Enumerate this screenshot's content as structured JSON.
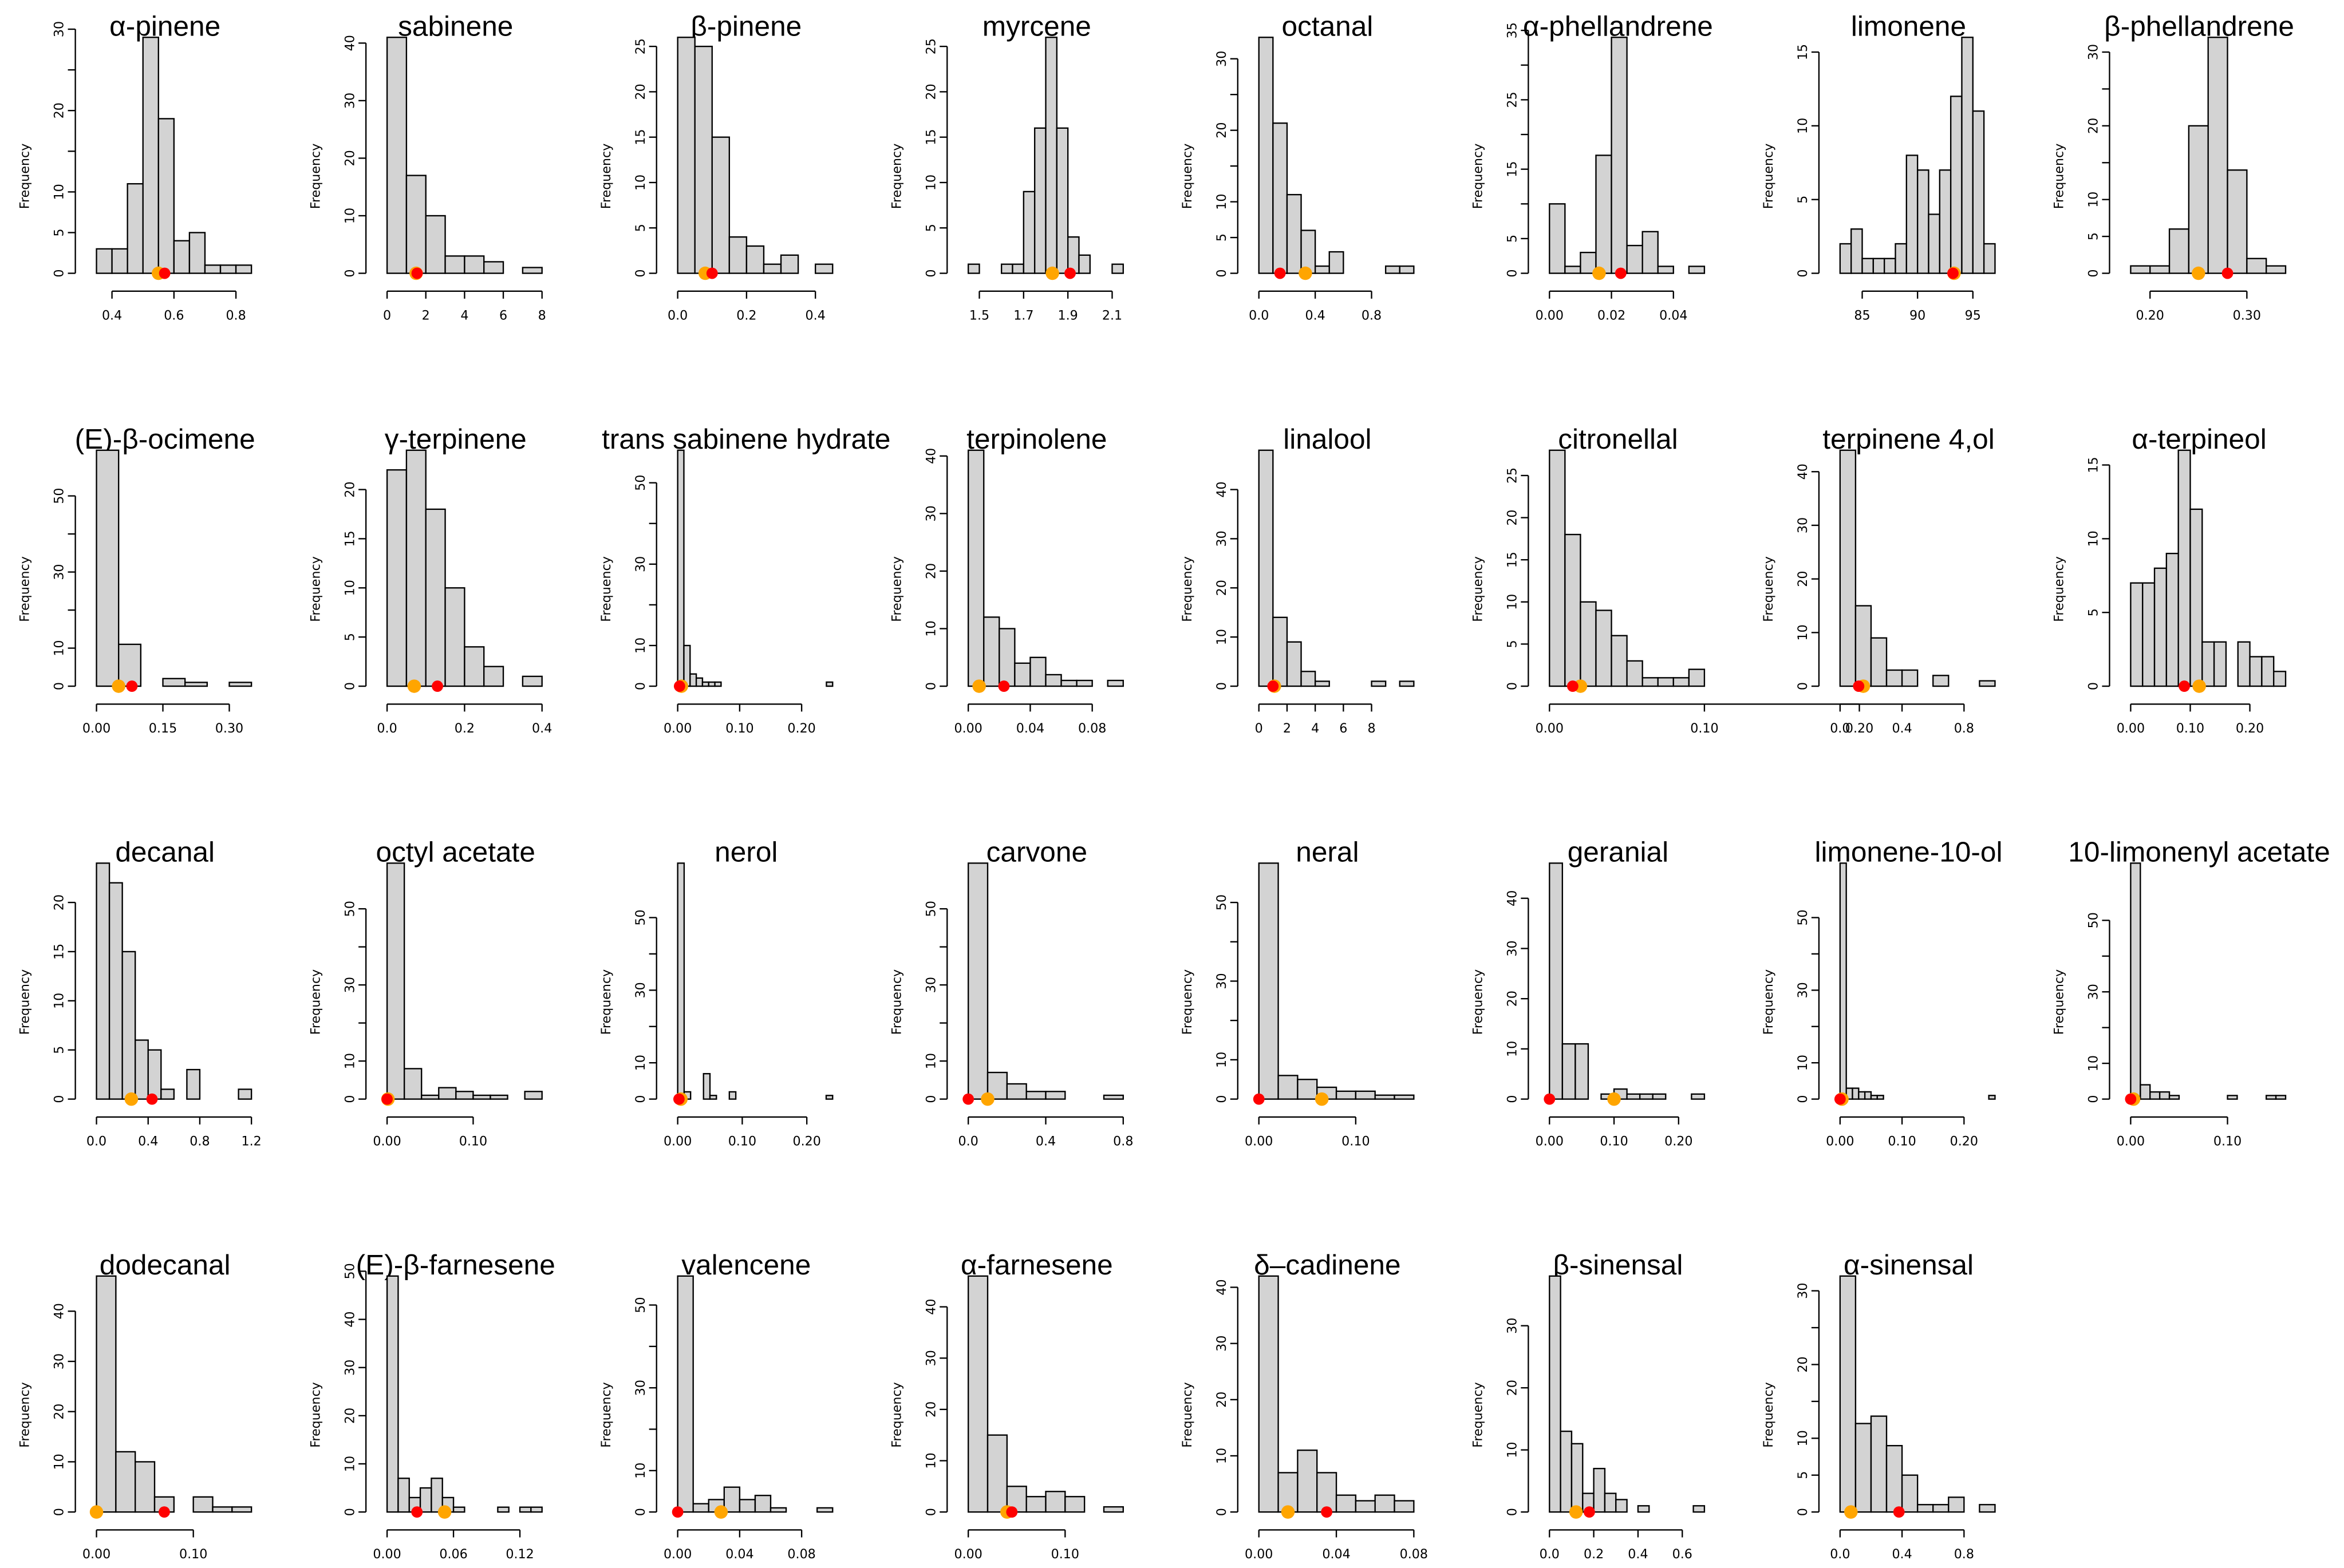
{
  "chart_data": [
    {
      "type": "bar",
      "title": "α-pinene",
      "ylabel": "Frequency",
      "bin_start": 0.35,
      "bin_width": 0.05,
      "counts": [
        3,
        3,
        11,
        29,
        19,
        4,
        5,
        1,
        1,
        1
      ],
      "xticks": [
        0.4,
        0.6,
        0.8
      ],
      "xtick_labels": [
        "0.4",
        "0.6",
        "0.8"
      ],
      "yticks": [
        0,
        5,
        10,
        20,
        30
      ],
      "markers": {
        "orange": 0.55,
        "red": 0.57
      }
    },
    {
      "type": "bar",
      "title": "sabinene",
      "ylabel": "Frequency",
      "bin_start": 0,
      "bin_width": 1,
      "counts": [
        41,
        17,
        10,
        3,
        3,
        2,
        0,
        1
      ],
      "xticks": [
        0,
        2,
        4,
        6,
        8
      ],
      "xtick_labels": [
        "0",
        "2",
        "4",
        "6",
        "8"
      ],
      "yticks": [
        0,
        10,
        20,
        30,
        40
      ],
      "markers": {
        "orange": 1.5,
        "red": 1.55
      }
    },
    {
      "type": "bar",
      "title": "β-pinene",
      "ylabel": "Frequency",
      "bin_start": 0,
      "bin_width": 0.05,
      "counts": [
        26,
        25,
        15,
        4,
        3,
        1,
        2,
        0,
        1
      ],
      "xticks": [
        0,
        0.2,
        0.4
      ],
      "xtick_labels": [
        "0.0",
        "0.2",
        "0.4"
      ],
      "yticks": [
        0,
        5,
        10,
        15,
        20,
        25
      ],
      "markers": {
        "orange": 0.08,
        "red": 0.1
      }
    },
    {
      "type": "bar",
      "title": "myrcene",
      "ylabel": "Frequency",
      "bin_start": 1.45,
      "bin_width": 0.05,
      "counts": [
        1,
        0,
        0,
        1,
        1,
        9,
        16,
        26,
        16,
        4,
        2,
        0,
        0,
        1
      ],
      "xticks": [
        1.5,
        1.7,
        1.9,
        2.1
      ],
      "xtick_labels": [
        "1.5",
        "1.7",
        "1.9",
        "2.1"
      ],
      "yticks": [
        0,
        5,
        10,
        15,
        20,
        25
      ],
      "markers": {
        "orange": 1.83,
        "red": 1.91
      }
    },
    {
      "type": "bar",
      "title": "octanal",
      "ylabel": "Frequency",
      "bin_start": 0,
      "bin_width": 0.1,
      "counts": [
        33,
        21,
        11,
        6,
        1,
        3,
        0,
        0,
        0,
        1,
        1
      ],
      "xticks": [
        0,
        0.4,
        0.8
      ],
      "xtick_labels": [
        "0.0",
        "0.4",
        "0.8"
      ],
      "yticks": [
        0,
        5,
        10,
        20,
        30
      ],
      "markers": {
        "orange": 0.33,
        "red": 0.15
      }
    },
    {
      "type": "bar",
      "title": "α-phellandrene",
      "ylabel": "Frequency",
      "bin_start": 0,
      "bin_width": 0.005,
      "counts": [
        10,
        1,
        3,
        17,
        34,
        4,
        6,
        1,
        0,
        1
      ],
      "xticks": [
        0,
        0.02,
        0.04
      ],
      "xtick_labels": [
        "0.00",
        "0.02",
        "0.04"
      ],
      "yticks": [
        0,
        5,
        15,
        25,
        35
      ],
      "markers": {
        "orange": 0.016,
        "red": 0.023
      }
    },
    {
      "type": "bar",
      "title": "limonene",
      "ylabel": "Frequency",
      "bin_start": 83,
      "bin_width": 1,
      "counts": [
        2,
        3,
        1,
        1,
        1,
        2,
        8,
        7,
        4,
        7,
        12,
        16,
        11,
        2
      ],
      "xticks": [
        85,
        90,
        95
      ],
      "xtick_labels": [
        "85",
        "90",
        "95"
      ],
      "yticks": [
        0,
        5,
        10,
        15
      ],
      "markers": {
        "orange": 93.3,
        "red": 93.2
      }
    },
    {
      "type": "bar",
      "title": "β-phellandrene",
      "ylabel": "Frequency",
      "bin_start": 0.18,
      "bin_width": 0.02,
      "counts": [
        1,
        1,
        6,
        20,
        32,
        14,
        2,
        1
      ],
      "xticks": [
        0.2,
        0.3
      ],
      "xtick_labels": [
        "0.20",
        "0.30"
      ],
      "yticks": [
        0,
        5,
        10,
        20,
        30
      ],
      "markers": {
        "orange": 0.25,
        "red": 0.28
      }
    },
    {
      "type": "bar",
      "title": "(E)-β-ocimene",
      "ylabel": "Frequency",
      "bin_start": 0,
      "bin_width": 0.05,
      "counts": [
        62,
        11,
        0,
        2,
        1,
        0,
        1
      ],
      "xticks": [
        0,
        0.15,
        0.3
      ],
      "xtick_labels": [
        "0.00",
        "0.15",
        "0.30"
      ],
      "yticks": [
        0,
        10,
        30,
        50
      ],
      "markers": {
        "orange": 0.05,
        "red": 0.08
      }
    },
    {
      "type": "bar",
      "title": "γ-terpinene",
      "ylabel": "Frequency",
      "bin_start": 0,
      "bin_width": 0.05,
      "counts": [
        22,
        24,
        18,
        10,
        4,
        2,
        0,
        1
      ],
      "xticks": [
        0,
        0.2,
        0.4
      ],
      "xtick_labels": [
        "0.0",
        "0.2",
        "0.4"
      ],
      "yticks": [
        0,
        5,
        10,
        15,
        20
      ],
      "markers": {
        "orange": 0.07,
        "red": 0.13
      }
    },
    {
      "type": "bar",
      "title": "trans sabinene hydrate",
      "ylabel": "Frequency",
      "bin_start": 0,
      "bin_width": 0.01,
      "counts": [
        58,
        10,
        3,
        2,
        1,
        1,
        1,
        0,
        0,
        0,
        0,
        0,
        0,
        0,
        0,
        0,
        0,
        0,
        0,
        0,
        0,
        0,
        0,
        0,
        1
      ],
      "xticks": [
        0,
        0.1,
        0.2
      ],
      "xtick_labels": [
        "0.00",
        "0.10",
        "0.20"
      ],
      "yticks": [
        0,
        10,
        30,
        50
      ],
      "markers": {
        "orange": 0.006,
        "red": 0.003
      }
    },
    {
      "type": "bar",
      "title": "terpinolene",
      "ylabel": "Frequency",
      "bin_start": 0,
      "bin_width": 0.01,
      "counts": [
        41,
        12,
        10,
        4,
        5,
        2,
        1,
        1,
        0,
        1
      ],
      "xticks": [
        0,
        0.04,
        0.08
      ],
      "xtick_labels": [
        "0.00",
        "0.04",
        "0.08"
      ],
      "yticks": [
        0,
        10,
        20,
        30,
        40
      ],
      "markers": {
        "orange": 0.007,
        "red": 0.023
      }
    },
    {
      "type": "bar",
      "title": "linalool",
      "ylabel": "Frequency",
      "bin_start": 0,
      "bin_width": 1,
      "counts": [
        48,
        14,
        9,
        3,
        1,
        0,
        0,
        0,
        1,
        0,
        1
      ],
      "xticks": [
        0,
        2,
        4,
        6,
        8
      ],
      "xtick_labels": [
        "0",
        "2",
        "4",
        "6",
        "8"
      ],
      "yticks": [
        0,
        10,
        20,
        30,
        40
      ],
      "markers": {
        "orange": 1.1,
        "red": 1.0
      }
    },
    {
      "type": "bar",
      "title": "citronellal",
      "ylabel": "Frequency",
      "bin_start": 0,
      "bin_width": 0.01,
      "counts": [
        28,
        18,
        10,
        9,
        6,
        3,
        1,
        1,
        1,
        2
      ],
      "xticks": [
        0,
        0.1,
        0.2
      ],
      "xtick_labels": [
        "0.00",
        "0.10",
        "0.20"
      ],
      "yticks": [
        0,
        5,
        10,
        15,
        20,
        25
      ],
      "markers": {
        "orange": 0.02,
        "red": 0.015
      }
    },
    {
      "type": "bar",
      "title": "terpinene 4,ol",
      "ylabel": "Frequency",
      "bin_start": 0,
      "bin_width": 0.1,
      "counts": [
        44,
        15,
        9,
        3,
        3,
        0,
        2,
        0,
        0,
        1
      ],
      "xticks": [
        0,
        0.4,
        0.8
      ],
      "xtick_labels": [
        "0.0",
        "0.4",
        "0.8"
      ],
      "yticks": [
        0,
        10,
        20,
        30,
        40
      ],
      "markers": {
        "orange": 0.15,
        "red": 0.12
      }
    },
    {
      "type": "bar",
      "title": "α-terpineol",
      "ylabel": "Frequency",
      "bin_start": 0,
      "bin_width": 0.02,
      "counts": [
        7,
        7,
        8,
        9,
        16,
        12,
        3,
        3,
        0,
        3,
        2,
        2,
        1
      ],
      "xticks": [
        0,
        0.1,
        0.2
      ],
      "xtick_labels": [
        "0.00",
        "0.10",
        "0.20"
      ],
      "yticks": [
        0,
        5,
        10,
        15
      ],
      "markers": {
        "orange": 0.115,
        "red": 0.09
      }
    },
    {
      "type": "bar",
      "title": "decanal",
      "ylabel": "Frequency",
      "bin_start": 0,
      "bin_width": 0.1,
      "counts": [
        24,
        22,
        15,
        6,
        5,
        1,
        0,
        3,
        0,
        0,
        0,
        1
      ],
      "xticks": [
        0,
        0.4,
        0.8,
        1.2
      ],
      "xtick_labels": [
        "0.0",
        "0.4",
        "0.8",
        "1.2"
      ],
      "yticks": [
        0,
        5,
        10,
        15,
        20
      ],
      "markers": {
        "orange": 0.27,
        "red": 0.43
      }
    },
    {
      "type": "bar",
      "title": "octyl acetate",
      "ylabel": "Frequency",
      "bin_start": 0,
      "bin_width": 0.02,
      "counts": [
        62,
        8,
        1,
        3,
        2,
        1,
        1,
        0,
        2
      ],
      "xticks": [
        0,
        0.1
      ],
      "xtick_labels": [
        "0.00",
        "0.10"
      ],
      "yticks": [
        0,
        10,
        30,
        50
      ],
      "markers": {
        "orange": 0.001,
        "red": 0.0
      }
    },
    {
      "type": "bar",
      "title": "nerol",
      "ylabel": "Frequency",
      "bin_start": 0,
      "bin_width": 0.01,
      "counts": [
        65,
        2,
        0,
        0,
        7,
        1,
        0,
        0,
        2,
        0,
        0,
        0,
        0,
        0,
        0,
        0,
        0,
        0,
        0,
        0,
        0,
        0,
        0,
        1
      ],
      "xticks": [
        0,
        0.1,
        0.2
      ],
      "xtick_labels": [
        "0.00",
        "0.10",
        "0.20"
      ],
      "yticks": [
        0,
        10,
        30,
        50
      ],
      "markers": {
        "orange": 0.005,
        "red": 0.002
      }
    },
    {
      "type": "bar",
      "title": "carvone",
      "ylabel": "Frequency",
      "bin_start": 0,
      "bin_width": 0.1,
      "counts": [
        62,
        7,
        4,
        2,
        2,
        0,
        0,
        1
      ],
      "xticks": [
        0,
        0.4,
        0.8
      ],
      "xtick_labels": [
        "0.0",
        "0.4",
        "0.8"
      ],
      "yticks": [
        0,
        10,
        30,
        50
      ],
      "markers": {
        "orange": 0.1,
        "red": 0.0
      }
    },
    {
      "type": "bar",
      "title": "neral",
      "ylabel": "Frequency",
      "bin_start": 0,
      "bin_width": 0.02,
      "counts": [
        60,
        6,
        5,
        3,
        2,
        2,
        1,
        1
      ],
      "xticks": [
        0,
        0.1
      ],
      "xtick_labels": [
        "0.00",
        "0.10"
      ],
      "yticks": [
        0,
        10,
        30,
        50
      ],
      "markers": {
        "orange": 0.065,
        "red": 0.0
      }
    },
    {
      "type": "bar",
      "title": "geranial",
      "ylabel": "Frequency",
      "bin_start": 0,
      "bin_width": 0.02,
      "counts": [
        47,
        11,
        11,
        0,
        1,
        2,
        1,
        1,
        1,
        0,
        0,
        1
      ],
      "xticks": [
        0,
        0.1,
        0.2
      ],
      "xtick_labels": [
        "0.00",
        "0.10",
        "0.20"
      ],
      "yticks": [
        0,
        10,
        20,
        30,
        40
      ],
      "markers": {
        "orange": 0.1,
        "red": 0.0
      }
    },
    {
      "type": "bar",
      "title": "limonene-10-ol",
      "ylabel": "Frequency",
      "bin_start": 0,
      "bin_width": 0.01,
      "counts": [
        65,
        3,
        3,
        2,
        2,
        1,
        1,
        0,
        0,
        0,
        0,
        0,
        0,
        0,
        0,
        0,
        0,
        0,
        0,
        0,
        0,
        0,
        0,
        0,
        1
      ],
      "xticks": [
        0,
        0.1,
        0.2
      ],
      "xtick_labels": [
        "0.00",
        "0.10",
        "0.20"
      ],
      "yticks": [
        0,
        10,
        30,
        50
      ],
      "markers": {
        "orange": 0.003,
        "red": 0.0
      }
    },
    {
      "type": "bar",
      "title": "10-limonenyl acetate",
      "ylabel": "Frequency",
      "bin_start": 0,
      "bin_width": 0.01,
      "counts": [
        66,
        4,
        2,
        2,
        1,
        0,
        0,
        0,
        0,
        0,
        1,
        0,
        0,
        0,
        1,
        1
      ],
      "xticks": [
        0,
        0.1
      ],
      "xtick_labels": [
        "0.00",
        "0.10"
      ],
      "yticks": [
        0,
        10,
        30,
        50
      ],
      "markers": {
        "orange": 0.003,
        "red": 0.0
      }
    },
    {
      "type": "bar",
      "title": "dodecanal",
      "ylabel": "Frequency",
      "bin_start": 0,
      "bin_width": 0.02,
      "counts": [
        47,
        12,
        10,
        3,
        0,
        3,
        1,
        1
      ],
      "xticks": [
        0,
        0.1
      ],
      "xtick_labels": [
        "0.00",
        "0.10"
      ],
      "yticks": [
        0,
        10,
        20,
        30,
        40
      ],
      "markers": {
        "orange": 0.0,
        "red": 0.07
      }
    },
    {
      "type": "bar",
      "title": "(E)-β-farnesene",
      "ylabel": "Frequency",
      "bin_start": 0,
      "bin_width": 0.01,
      "counts": [
        49,
        7,
        3,
        5,
        7,
        3,
        1,
        0,
        0,
        0,
        1,
        0,
        1,
        1
      ],
      "xticks": [
        0,
        0.06,
        0.12
      ],
      "xtick_labels": [
        "0.00",
        "0.06",
        "0.12"
      ],
      "yticks": [
        0,
        10,
        20,
        30,
        40,
        50
      ],
      "markers": {
        "orange": 0.052,
        "red": 0.027
      }
    },
    {
      "type": "bar",
      "title": "valencene",
      "ylabel": "Frequency",
      "bin_start": 0,
      "bin_width": 0.01,
      "counts": [
        57,
        2,
        3,
        6,
        3,
        4,
        1,
        0,
        0,
        1
      ],
      "xticks": [
        0,
        0.04,
        0.08
      ],
      "xtick_labels": [
        "0.00",
        "0.04",
        "0.08"
      ],
      "yticks": [
        0,
        10,
        30,
        50
      ],
      "markers": {
        "orange": 0.028,
        "red": 0.0
      }
    },
    {
      "type": "bar",
      "title": "α-farnesene",
      "ylabel": "Frequency",
      "bin_start": 0,
      "bin_width": 0.02,
      "counts": [
        46,
        15,
        5,
        3,
        4,
        3,
        0,
        1
      ],
      "xticks": [
        0,
        0.1
      ],
      "xtick_labels": [
        "0.00",
        "0.10"
      ],
      "yticks": [
        0,
        10,
        20,
        30,
        40
      ],
      "markers": {
        "orange": 0.04,
        "red": 0.045
      }
    },
    {
      "type": "bar",
      "title": "δ–cadinene",
      "ylabel": "Frequency",
      "bin_start": 0,
      "bin_width": 0.01,
      "counts": [
        42,
        7,
        11,
        7,
        3,
        2,
        3,
        2
      ],
      "xticks": [
        0,
        0.04,
        0.08
      ],
      "xtick_labels": [
        "0.00",
        "0.04",
        "0.08"
      ],
      "yticks": [
        0,
        10,
        20,
        30,
        40
      ],
      "markers": {
        "orange": 0.015,
        "red": 0.035
      }
    },
    {
      "type": "bar",
      "title": "β-sinensal",
      "ylabel": "Frequency",
      "bin_start": 0,
      "bin_width": 0.05,
      "counts": [
        38,
        13,
        11,
        3,
        7,
        3,
        2,
        0,
        1,
        0,
        0,
        0,
        0,
        1
      ],
      "xticks": [
        0,
        0.2,
        0.4,
        0.6
      ],
      "xtick_labels": [
        "0.0",
        "0.2",
        "0.4",
        "0.6"
      ],
      "yticks": [
        0,
        10,
        20,
        30
      ],
      "markers": {
        "orange": 0.12,
        "red": 0.18
      }
    },
    {
      "type": "bar",
      "title": "α-sinensal",
      "ylabel": "Frequency",
      "bin_start": 0,
      "bin_width": 0.1,
      "counts": [
        32,
        12,
        13,
        9,
        5,
        1,
        1,
        2,
        0,
        1
      ],
      "xticks": [
        0,
        0.4,
        0.8
      ],
      "xtick_labels": [
        "0.0",
        "0.4",
        "0.8"
      ],
      "yticks": [
        0,
        5,
        10,
        20,
        30
      ],
      "markers": {
        "orange": 0.07,
        "red": 0.38
      }
    }
  ],
  "colors": {
    "bar_fill": "#d3d3d3",
    "marker_orange": "#FFA500",
    "marker_red": "#FF0000"
  }
}
